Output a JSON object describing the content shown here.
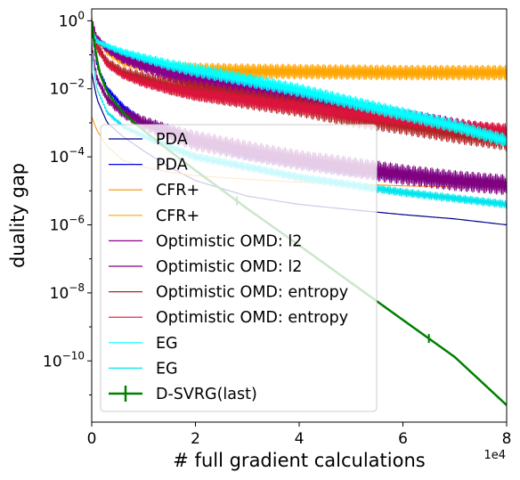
{
  "chart_data": {
    "type": "line",
    "xlabel": "# full gradient calculations",
    "ylabel": "duality gap",
    "x_offset_label": "1e4",
    "xlim": [
      0,
      80000
    ],
    "ylim_log10": [
      -11.8,
      0.35
    ],
    "y_scale": "log",
    "grid": false,
    "legend_placement": "lower-left",
    "x_ticks": [
      {
        "value": 0,
        "label": "0"
      },
      {
        "value": 20000,
        "label": "2"
      },
      {
        "value": 40000,
        "label": "4"
      },
      {
        "value": 60000,
        "label": "6"
      },
      {
        "value": 80000,
        "label": "8"
      }
    ],
    "y_ticks": [
      {
        "exp": 0,
        "base": "10",
        "sup": "0"
      },
      {
        "exp": -2,
        "base": "10",
        "sup": "−2"
      },
      {
        "exp": -4,
        "base": "10",
        "sup": "−4"
      },
      {
        "exp": -6,
        "base": "10",
        "sup": "−6"
      },
      {
        "exp": -8,
        "base": "10",
        "sup": "−8"
      },
      {
        "exp": -10,
        "base": "10",
        "sup": "−10"
      }
    ],
    "series": [
      {
        "name": "PDA",
        "color": "#00008b",
        "width": 1.2,
        "osc": 0.0,
        "x": [
          0,
          1000,
          3000,
          6000,
          10000,
          15000,
          20000,
          30000,
          40000,
          50000,
          60000,
          70000,
          80000
        ],
        "y": [
          0.03,
          0.005,
          0.001,
          0.0004,
          0.00015,
          5e-05,
          2e-05,
          7e-06,
          4e-06,
          2.8e-06,
          2e-06,
          1.5e-06,
          1e-06
        ]
      },
      {
        "name": "PDA",
        "color": "#0000ee",
        "width": 1.0,
        "osc": 0.18,
        "x": [
          0,
          1000,
          3000,
          6000,
          10000,
          15000,
          20000,
          30000,
          40000,
          50000,
          60000,
          70000,
          80000
        ],
        "y": [
          0.5,
          0.05,
          0.01,
          0.003,
          0.001,
          0.0006,
          0.0003,
          0.00012,
          7e-05,
          4e-05,
          3e-05,
          2e-05,
          1.5e-05
        ]
      },
      {
        "name": "CFR+",
        "color": "#ff8c00",
        "width": 1.0,
        "osc": 0.0,
        "x": [
          0,
          1000,
          3000,
          6000,
          10000,
          15000,
          20000,
          30000,
          40000,
          50000,
          60000,
          70000,
          80000
        ],
        "y": [
          0.0015,
          0.0006,
          0.0002,
          8e-05,
          5e-05,
          3.5e-05,
          2.8e-05,
          2.2e-05,
          1.8e-05,
          1.6e-05,
          1.4e-05,
          1.3e-05,
          1.2e-05
        ]
      },
      {
        "name": "CFR+",
        "color": "#ffa500",
        "width": 1.0,
        "osc": 0.22,
        "x": [
          0,
          1000,
          3000,
          6000,
          10000,
          15000,
          20000,
          30000,
          40000,
          50000,
          60000,
          70000,
          80000
        ],
        "y": [
          1.0,
          0.3,
          0.12,
          0.06,
          0.045,
          0.04,
          0.035,
          0.033,
          0.032,
          0.031,
          0.03,
          0.03,
          0.03
        ]
      },
      {
        "name": "Optimistic OMD: l2",
        "color": "#8b008b",
        "width": 1.2,
        "osc": 0.3,
        "x": [
          0,
          1000,
          3000,
          6000,
          10000,
          15000,
          20000,
          30000,
          40000,
          50000,
          60000,
          70000,
          80000
        ],
        "y": [
          1.0,
          0.3,
          0.15,
          0.08,
          0.05,
          0.03,
          0.02,
          0.01,
          0.005,
          0.0025,
          0.0013,
          0.0007,
          0.0004
        ]
      },
      {
        "name": "Optimistic OMD: l2",
        "color": "#800080",
        "width": 1.0,
        "osc": 0.3,
        "x": [
          0,
          1000,
          3000,
          6000,
          10000,
          15000,
          20000,
          30000,
          40000,
          50000,
          60000,
          70000,
          80000
        ],
        "y": [
          0.2,
          0.02,
          0.005,
          0.002,
          0.001,
          0.0005,
          0.0003,
          0.00015,
          8e-05,
          5e-05,
          3e-05,
          2e-05,
          1.5e-05
        ]
      },
      {
        "name": "Optimistic OMD: entropy",
        "color": "#b22222",
        "width": 1.0,
        "osc": 0.3,
        "x": [
          0,
          1000,
          3000,
          6000,
          10000,
          15000,
          20000,
          30000,
          40000,
          50000,
          60000,
          70000,
          80000
        ],
        "y": [
          0.8,
          0.2,
          0.06,
          0.03,
          0.02,
          0.012,
          0.009,
          0.005,
          0.003,
          0.0015,
          0.0009,
          0.0005,
          0.0003
        ]
      },
      {
        "name": "Optimistic OMD: entropy",
        "color": "#dc143c",
        "width": 1.0,
        "osc": 0.2,
        "x": [
          0,
          1000,
          3000,
          6000,
          10000,
          15000,
          20000,
          30000,
          40000,
          50000,
          60000,
          70000,
          80000
        ],
        "y": [
          0.5,
          0.15,
          0.05,
          0.025,
          0.015,
          0.01,
          0.007,
          0.0045,
          0.0028,
          0.0018,
          0.0012,
          0.0008,
          0.0006
        ]
      },
      {
        "name": "EG",
        "color": "#00ffff",
        "width": 1.0,
        "osc": 0.2,
        "x": [
          0,
          1000,
          3000,
          6000,
          10000,
          15000,
          20000,
          30000,
          40000,
          50000,
          60000,
          70000,
          80000
        ],
        "y": [
          0.6,
          0.25,
          0.18,
          0.12,
          0.08,
          0.05,
          0.035,
          0.018,
          0.009,
          0.004,
          0.0018,
          0.0008,
          0.0003
        ]
      },
      {
        "name": "EG",
        "color": "#00e5ee",
        "width": 1.0,
        "osc": 0.12,
        "x": [
          0,
          1000,
          3000,
          6000,
          10000,
          15000,
          20000,
          30000,
          40000,
          50000,
          60000,
          70000,
          80000
        ],
        "y": [
          0.1,
          0.01,
          0.002,
          0.0008,
          0.0004,
          0.0002,
          0.0001,
          5e-05,
          2.5e-05,
          1.5e-05,
          9e-06,
          6e-06,
          4e-06
        ]
      },
      {
        "name": "D-SVRG(last)",
        "color": "#008000",
        "width": 2.5,
        "osc": 0.0,
        "markers": true,
        "x": [
          0,
          500,
          1500,
          3000,
          6000,
          10000,
          15000,
          20000,
          30000,
          40000,
          50000,
          60000,
          70000,
          80000
        ],
        "y": [
          1.0,
          0.2,
          0.03,
          0.008,
          0.002,
          0.0006,
          0.00015,
          4e-05,
          3e-06,
          2.5e-07,
          2e-08,
          1.6e-09,
          1.3e-10,
          5e-12
        ]
      }
    ],
    "legend": [
      {
        "label": "PDA",
        "color": "#00008b",
        "style": "line"
      },
      {
        "label": "PDA",
        "color": "#0000ee",
        "style": "line"
      },
      {
        "label": "CFR+",
        "color": "#ff8c00",
        "style": "line"
      },
      {
        "label": "CFR+",
        "color": "#ffa500",
        "style": "line"
      },
      {
        "label": "Optimistic OMD: l2",
        "color": "#8b008b",
        "style": "line"
      },
      {
        "label": "Optimistic OMD: l2",
        "color": "#800080",
        "style": "line"
      },
      {
        "label": "Optimistic OMD: entropy",
        "color": "#b22222",
        "style": "line"
      },
      {
        "label": "Optimistic OMD: entropy",
        "color": "#dc143c",
        "style": "line"
      },
      {
        "label": "EG",
        "color": "#00ffff",
        "style": "line"
      },
      {
        "label": "EG",
        "color": "#00e5ee",
        "style": "line"
      },
      {
        "label": "D-SVRG(last)",
        "color": "#008000",
        "style": "errorbar"
      }
    ]
  }
}
